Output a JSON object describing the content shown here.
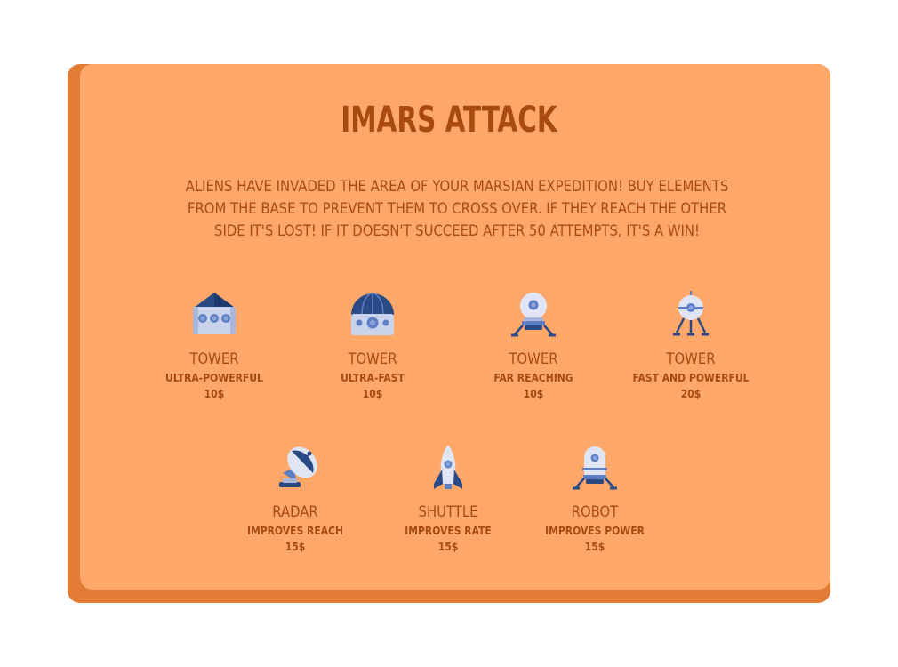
{
  "game": {
    "title": "IMARS ATTACK",
    "intro": "Aliens have invaded the area of your marsian expedition! Buy elements from the base to prevent them to cross over. If they reach the other side it's lost! If it doesn't succeed after 50 attempts, it's a win!"
  },
  "shop": {
    "items": [
      {
        "name": "TOWER",
        "desc": "ULTRA-POWERFUL",
        "price": "10$",
        "icon": "house-tower-icon"
      },
      {
        "name": "TOWER",
        "desc": "ULTRA-FAST",
        "price": "10$",
        "icon": "dome-tower-icon"
      },
      {
        "name": "TOWER",
        "desc": "FAR REACHING",
        "price": "10$",
        "icon": "orb-tower-icon"
      },
      {
        "name": "TOWER",
        "desc": "FAST AND POWERFUL",
        "price": "20$",
        "icon": "satellite-tower-icon"
      },
      {
        "name": "RADAR",
        "desc": "IMPROVES REACH",
        "price": "15$",
        "icon": "radar-dish-icon"
      },
      {
        "name": "SHUTTLE",
        "desc": "IMPROVES RATE",
        "price": "15$",
        "icon": "shuttle-rocket-icon"
      },
      {
        "name": "ROBOT",
        "desc": "IMPROVES POWER",
        "price": "15$",
        "icon": "robot-lander-icon"
      }
    ]
  },
  "colors": {
    "card_shadow": "#e27b34",
    "card_face": "#ffa86a",
    "text": "#a94a12",
    "icon_dark": "#2a4a86",
    "icon_mid": "#5f7fc4",
    "icon_light": "#c9d3ec"
  }
}
